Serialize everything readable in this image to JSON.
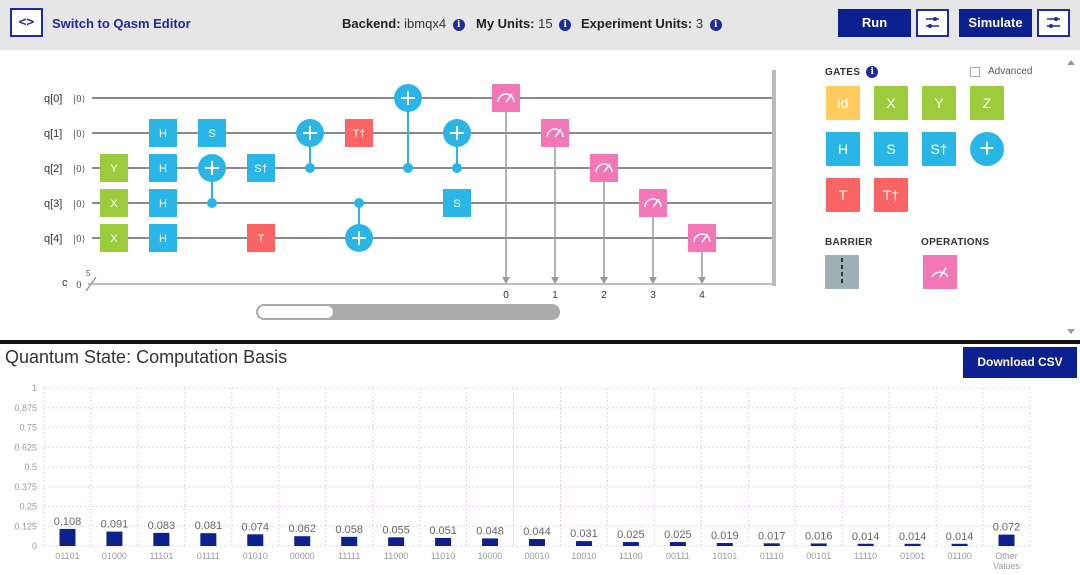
{
  "toolbar": {
    "code_icon_glyph": "<>",
    "switch_label": "Switch to Qasm Editor",
    "backend_label": "Backend:",
    "backend_value": "ibmqx4",
    "my_units_label": "My Units:",
    "my_units_value": "15",
    "experiment_units_label": "Experiment Units:",
    "experiment_units_value": "3",
    "info_glyph": "i",
    "run_label": "Run",
    "simulate_label": "Simulate"
  },
  "circuit": {
    "qubits": [
      "q[0]",
      "q[1]",
      "q[2]",
      "q[3]",
      "q[4]"
    ],
    "ket": "|0⟩",
    "classical_label": "c",
    "classical_zero": "0",
    "classical_width": "5",
    "measure_bits": [
      "0",
      "1",
      "2",
      "3",
      "4"
    ],
    "gates": [
      {
        "label": "Y",
        "qubit": 2,
        "col": 0,
        "color": "#9ccc3c"
      },
      {
        "label": "X",
        "qubit": 3,
        "col": 0,
        "color": "#9ccc3c"
      },
      {
        "label": "X",
        "qubit": 4,
        "col": 0,
        "color": "#9ccc3c"
      },
      {
        "label": "H",
        "qubit": 1,
        "col": 1,
        "color": "#29b6e6"
      },
      {
        "label": "H",
        "qubit": 2,
        "col": 1,
        "color": "#29b6e6"
      },
      {
        "label": "H",
        "qubit": 3,
        "col": 1,
        "color": "#29b6e6"
      },
      {
        "label": "H",
        "qubit": 4,
        "col": 1,
        "color": "#29b6e6"
      },
      {
        "label": "S",
        "qubit": 1,
        "col": 2,
        "color": "#29b6e6"
      },
      {
        "label": "S†",
        "qubit": 2,
        "col": 3,
        "color": "#29b6e6"
      },
      {
        "label": "T",
        "qubit": 4,
        "col": 3,
        "color": "#fa6464"
      },
      {
        "label": "T†",
        "qubit": 1,
        "col": 5,
        "color": "#fa6464"
      },
      {
        "label": "S",
        "qubit": 3,
        "col": 7,
        "color": "#29b6e6"
      }
    ],
    "cnots": [
      {
        "target": 2,
        "control": 3,
        "col": 2
      },
      {
        "target": 1,
        "control": 2,
        "col": 4
      },
      {
        "target": 4,
        "control": 3,
        "col": 5
      },
      {
        "target": 0,
        "control": 2,
        "col": 6
      },
      {
        "target": 1,
        "control": 2,
        "col": 7
      }
    ],
    "measures": [
      {
        "qubit": 0,
        "col": 8,
        "bit": 0
      },
      {
        "qubit": 1,
        "col": 9,
        "bit": 1
      },
      {
        "qubit": 2,
        "col": 10,
        "bit": 2
      },
      {
        "qubit": 3,
        "col": 11,
        "bit": 3
      },
      {
        "qubit": 4,
        "col": 12,
        "bit": 4
      }
    ],
    "horizontal_scroll_fraction": 0.25
  },
  "palette": {
    "gates_title": "GATES",
    "advanced_label": "Advanced",
    "advanced_checked": false,
    "gates": [
      {
        "label": "id",
        "color": "#ffcb5c"
      },
      {
        "label": "X",
        "color": "#9ccc3c"
      },
      {
        "label": "Y",
        "color": "#9ccc3c"
      },
      {
        "label": "Z",
        "color": "#9ccc3c"
      },
      {
        "label": "H",
        "color": "#29b6e6"
      },
      {
        "label": "S",
        "color": "#29b6e6"
      },
      {
        "label": "S†",
        "color": "#29b6e6"
      },
      {
        "label": "+",
        "color": "#29b6e6"
      },
      {
        "label": "T",
        "color": "#fa6464"
      },
      {
        "label": "T†",
        "color": "#fa6464"
      }
    ],
    "barrier_title": "BARRIER",
    "operations_title": "OPERATIONS",
    "measure_color": "#f177b7",
    "cnot_color": "#29b6e6"
  },
  "results": {
    "title": "Quantum State: Computation Basis",
    "download_label": "Download CSV"
  },
  "chart_data": {
    "type": "bar",
    "title": "",
    "xlabel": "",
    "ylabel": "",
    "ylim": [
      0,
      1
    ],
    "yticks": [
      "0",
      "0.125",
      "0.25",
      "0.375",
      "0.5",
      "0.625",
      "0.75",
      "0.875",
      "1"
    ],
    "grid": true,
    "bar_color": "#0c2090",
    "categories": [
      "01101",
      "01000",
      "11101",
      "01111",
      "01010",
      "00000",
      "11111",
      "11000",
      "11010",
      "10000",
      "00010",
      "10010",
      "11100",
      "00111",
      "10101",
      "01110",
      "00101",
      "11110",
      "01001",
      "01100",
      "Other Values"
    ],
    "values": [
      0.108,
      0.091,
      0.083,
      0.081,
      0.074,
      0.062,
      0.058,
      0.055,
      0.051,
      0.048,
      0.044,
      0.031,
      0.025,
      0.025,
      0.019,
      0.017,
      0.016,
      0.014,
      0.014,
      0.014,
      0.072
    ],
    "value_labels": [
      "0.108",
      "0.091",
      "0.083",
      "0.081",
      "0.074",
      "0.062",
      "0.058",
      "0.055",
      "0.051",
      "0.048",
      "0.044",
      "0.031",
      "0.025",
      "0.025",
      "0.019",
      "0.017",
      "0.016",
      "0.014",
      "0.014",
      "0.014",
      "0.072"
    ]
  }
}
